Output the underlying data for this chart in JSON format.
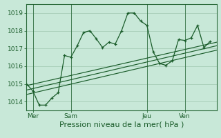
{
  "background_color": "#c8e8d8",
  "grid_color": "#a0c8b0",
  "line_color": "#1a5c2a",
  "spine_color": "#2a6a3a",
  "title": "Pression niveau de la mer( hPa )",
  "ylim": [
    1013.5,
    1019.5
  ],
  "yticks": [
    1014,
    1015,
    1016,
    1017,
    1018,
    1019
  ],
  "xlim": [
    0,
    30
  ],
  "day_labels": [
    "Mer",
    "Sam",
    "Jeu",
    "Ven"
  ],
  "day_positions": [
    1,
    7,
    19,
    25
  ],
  "vline_positions": [
    1,
    7,
    19,
    25
  ],
  "series1_x": [
    0,
    1,
    2,
    3,
    4,
    5,
    6,
    7,
    8,
    9,
    10,
    11,
    12,
    13,
    14,
    15,
    16,
    17,
    18,
    19,
    20,
    21,
    22,
    23,
    24,
    25,
    26,
    27,
    28,
    29
  ],
  "series1_y": [
    1015.0,
    1014.6,
    1013.8,
    1013.8,
    1014.2,
    1014.5,
    1016.6,
    1016.5,
    1017.15,
    1017.9,
    1018.0,
    1017.55,
    1017.05,
    1017.35,
    1017.25,
    1018.0,
    1019.0,
    1019.0,
    1018.55,
    1018.3,
    1016.8,
    1016.15,
    1016.05,
    1016.3,
    1017.5,
    1017.45,
    1017.6,
    1018.3,
    1017.05,
    1017.4
  ],
  "series2_x": [
    0,
    30
  ],
  "series2_y": [
    1014.9,
    1017.35
  ],
  "series3_x": [
    0,
    30
  ],
  "series3_y": [
    1014.65,
    1017.15
  ],
  "series4_x": [
    0,
    30
  ],
  "series4_y": [
    1014.4,
    1016.9
  ],
  "title_fontsize": 8,
  "tick_fontsize": 6.5
}
